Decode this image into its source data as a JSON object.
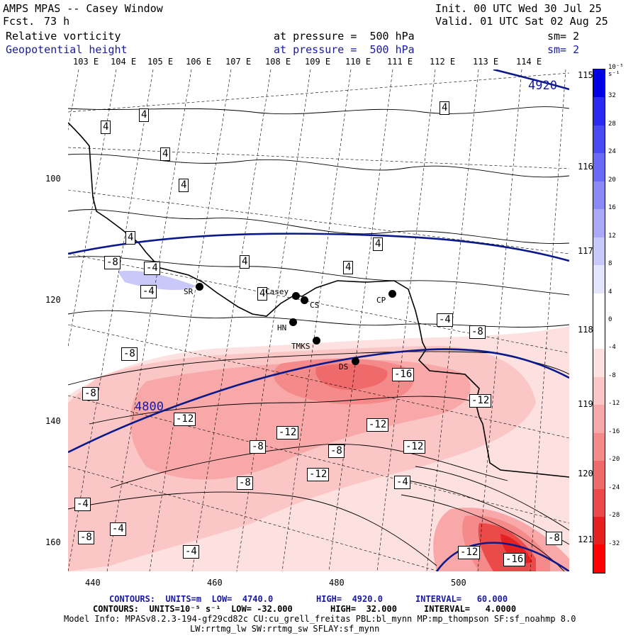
{
  "header": {
    "model": "AMPS MPAS -- Casey Window",
    "fcst_label": "Fcst.",
    "fcst_value": "73 h",
    "init": "Init. 00 UTC Wed 30 Jul 25",
    "valid": "Valid. 01 UTC Sat 02 Aug 25",
    "field1_name": "Relative vorticity",
    "field1_level": "at pressure =  500 hPa",
    "field1_sm": "sm= 2",
    "field2_name": "Geopotential height",
    "field2_level": "at pressure =  500 hPa",
    "field2_sm": "sm= 2"
  },
  "top_longitudes": [
    "103 E",
    "104 E",
    "105 E",
    "106 E",
    "107 E",
    "108 E",
    "109 E",
    "110 E",
    "111 E",
    "112 E",
    "113 E",
    "114 E"
  ],
  "right_latitudes": [
    "115 E",
    "116 E",
    "117 E",
    "118 E",
    "119 E",
    "120 E",
    "121 E"
  ],
  "y_ticks": [
    "100",
    "120",
    "140",
    "160"
  ],
  "x_ticks": [
    "440",
    "460",
    "480",
    "500"
  ],
  "height_labels": [
    "4920",
    "4800"
  ],
  "vorticity_labels": [
    "4",
    "4",
    "4",
    "4",
    "4",
    "4",
    "4",
    "4",
    "4",
    "4",
    "-8",
    "-4",
    "-4",
    "-4",
    "-8",
    "-8",
    "-8",
    "-16",
    "-12",
    "-12",
    "-12",
    "-12",
    "-8",
    "-8",
    "-12",
    "-12",
    "-4",
    "-4",
    "-8",
    "-4",
    "-8",
    "-4",
    "-12",
    "-16",
    "-8"
  ],
  "stations": [
    "SR",
    "Casey",
    "CS",
    "CP",
    "HN",
    "TMKS",
    "DS"
  ],
  "colorbar": {
    "unit": "10⁻⁵ s⁻¹",
    "ticks": [
      "32",
      "28",
      "24",
      "20",
      "16",
      "12",
      "8",
      "4",
      "0",
      "-4",
      "-8",
      "-12",
      "-16",
      "-20",
      "-24",
      "-28",
      "-32"
    ],
    "colors": [
      "#0000e6",
      "#2a2af0",
      "#4a4af2",
      "#6a6af4",
      "#8a8af6",
      "#aaaaf8",
      "#c8c8fa",
      "#e4e4fc",
      "#ffffff",
      "#ffffff",
      "#fde0e0",
      "#fbc6c6",
      "#f8a8a8",
      "#f48a8a",
      "#ef6a6a",
      "#ea4a4a",
      "#e52020",
      "#ff0000"
    ]
  },
  "footer": {
    "line1_a": "CONTOURS:  UNITS=m  LOW=  4740.0",
    "line1_b": "HIGH=  4920.0",
    "line1_c": "INTERVAL=   60.000",
    "line2_a": "CONTOURS:  UNITS=10⁻⁵ s⁻¹  LOW= -32.000",
    "line2_b": "HIGH=  32.000",
    "line2_c": "INTERVAL=   4.0000",
    "line3": "Model Info: MPASv8.2.3-194-gf29cd82c CU:cu_grell_freitas PBL:bl_mynn MP:mp_thompson SF:sf_noahmp 8.0",
    "line4": "LW:rrtmg_lw SW:rrtmg_sw SFLAY:sf_mynn"
  }
}
